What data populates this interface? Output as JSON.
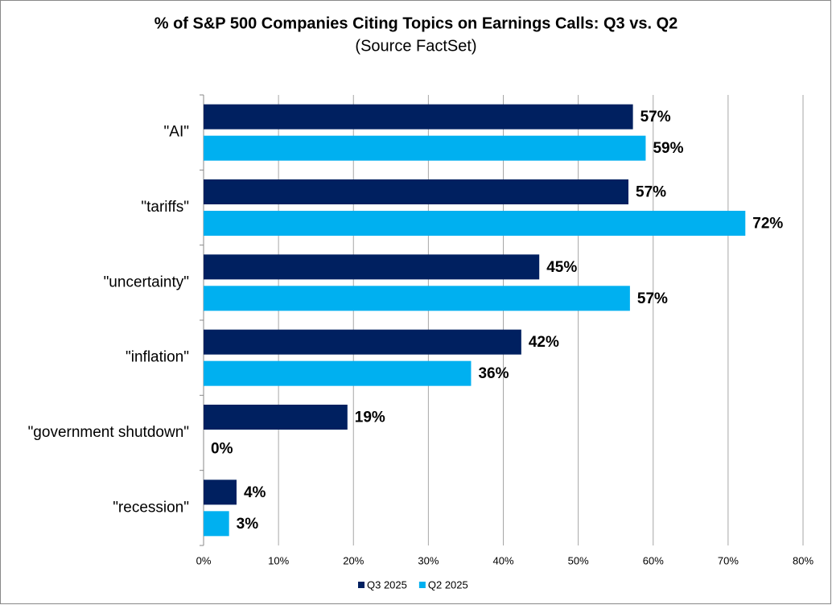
{
  "chart_data": {
    "type": "hbar",
    "title": "% of S&P 500 Companies Citing Topics on Earnings Calls: Q3 vs. Q2",
    "subtitle": "(Source FactSet)",
    "categories": [
      "\"AI\"",
      "\"tariffs\"",
      "\"uncertainty\"",
      "\"inflation\"",
      "\"government shutdown\"",
      "\"recession\""
    ],
    "series": [
      {
        "name": "Q3 2025",
        "color": "#002060",
        "values": [
          57.3,
          56.7,
          44.8,
          42.4,
          19.2,
          4.4
        ],
        "value_labels": [
          "57%",
          "57%",
          "45%",
          "42%",
          "19%",
          "4%"
        ]
      },
      {
        "name": "Q2 2025",
        "color": "#00b0f0",
        "values": [
          59.0,
          72.3,
          56.9,
          35.7,
          0,
          3.4
        ],
        "value_labels": [
          "59%",
          "72%",
          "57%",
          "36%",
          "0%",
          "3%"
        ]
      }
    ],
    "xlim": [
      0,
      80
    ],
    "xticks": [
      {
        "value": 0,
        "label": "0%"
      },
      {
        "value": 10,
        "label": "10%"
      },
      {
        "value": 20,
        "label": "20%"
      },
      {
        "value": 30,
        "label": "30%"
      },
      {
        "value": 40,
        "label": "40%"
      },
      {
        "value": 50,
        "label": "50%"
      },
      {
        "value": 60,
        "label": "60%"
      },
      {
        "value": 70,
        "label": "70%"
      },
      {
        "value": 80,
        "label": "80%"
      }
    ],
    "grid": true,
    "legend": "bottom"
  }
}
